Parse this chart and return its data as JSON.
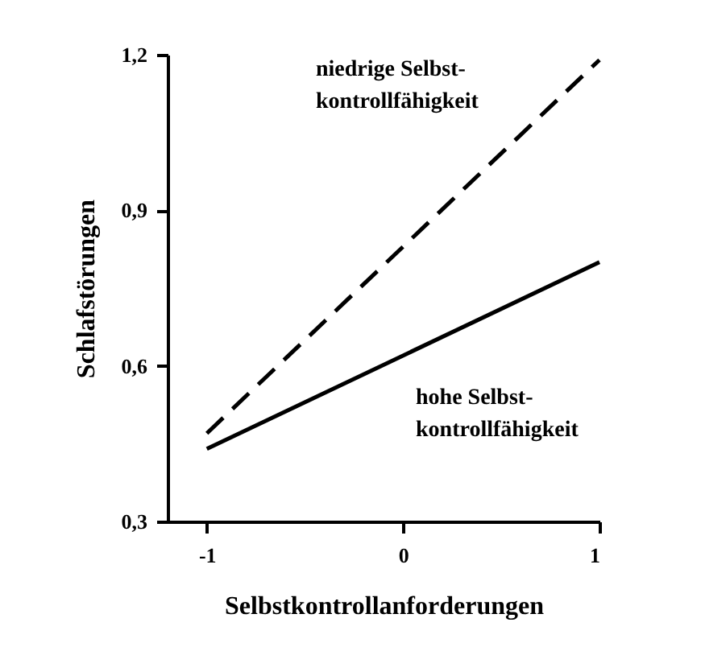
{
  "chart_data": {
    "type": "line",
    "xlabel": "Selbstkontrollanforderungen",
    "ylabel": "Schlafstörungen",
    "x": [
      -1,
      1
    ],
    "xlim": [
      -1.2,
      1.0
    ],
    "xticks": [
      -1,
      0,
      1
    ],
    "ylim": [
      0.3,
      1.2
    ],
    "yticks": [
      {
        "value": 0.3,
        "label": "0,3"
      },
      {
        "value": 0.6,
        "label": "0,6"
      },
      {
        "value": 0.9,
        "label": "0,9"
      },
      {
        "value": 1.2,
        "label": "1,2"
      }
    ],
    "grid": false,
    "marker": "none",
    "series": [
      {
        "name": "niedrige Selbst-\nkontrollfähigkeit",
        "color": "#000000",
        "line_style": "dashed",
        "values": [
          0.47,
          1.19
        ]
      },
      {
        "name": "hohe Selbst-\nkontrollfähigkeit",
        "color": "#000000",
        "line_style": "solid",
        "values": [
          0.44,
          0.8
        ]
      }
    ]
  }
}
